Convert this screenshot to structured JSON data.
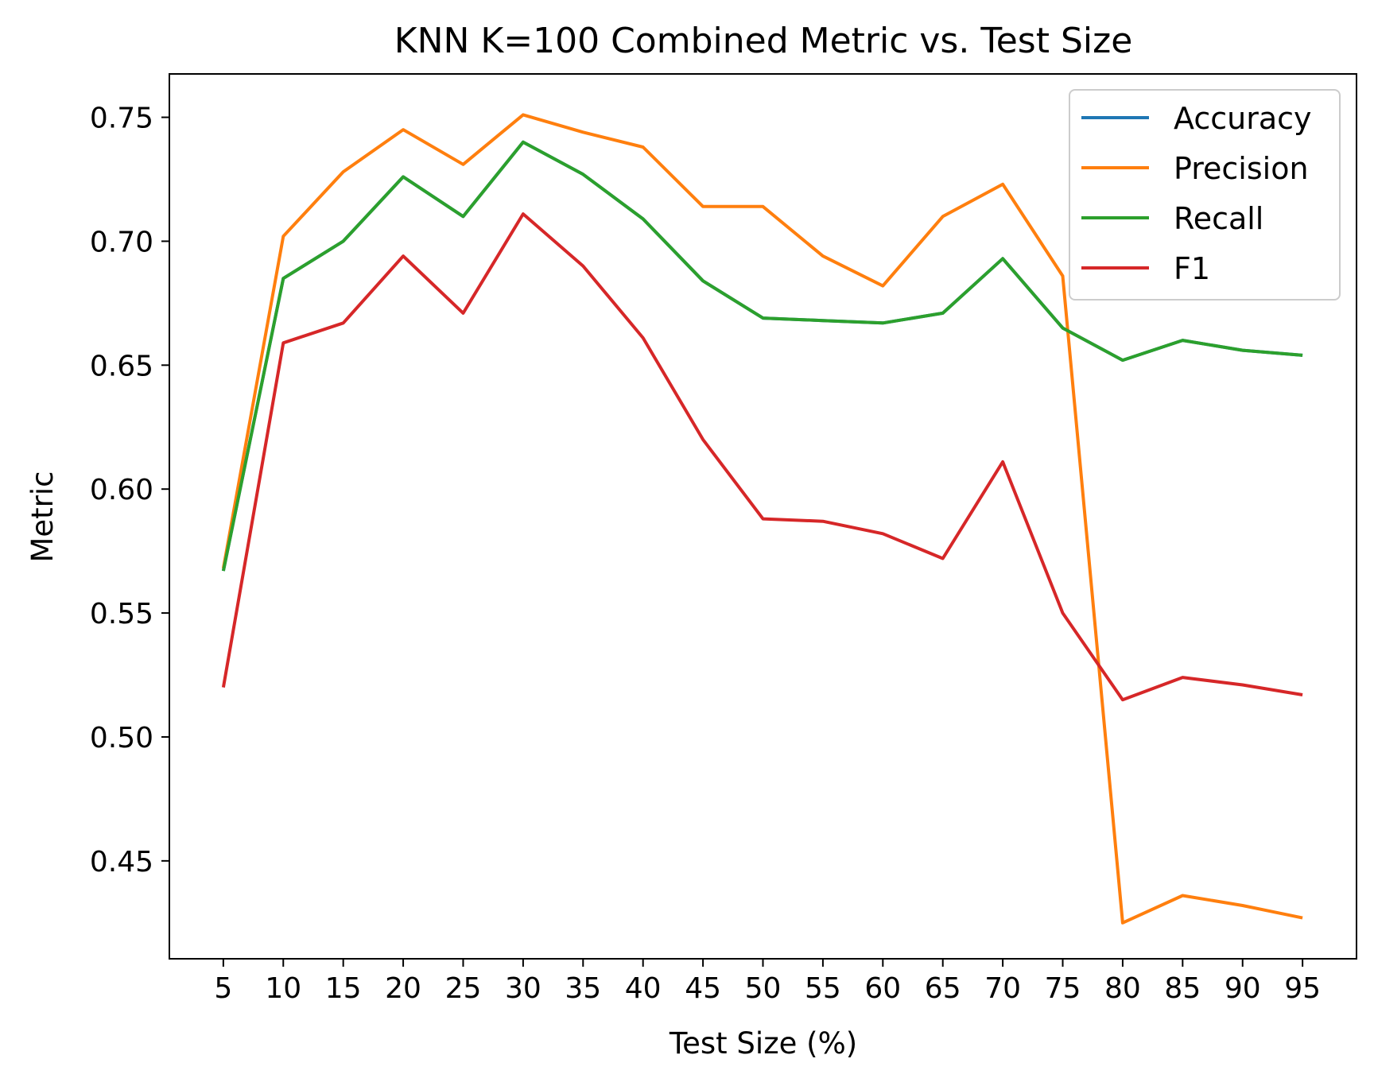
{
  "chart_data": {
    "type": "line",
    "title": "KNN K=100  Combined Metric vs. Test Size",
    "xlabel": "Test Size (%)",
    "ylabel": "Metric",
    "x": [
      5,
      10,
      15,
      20,
      25,
      30,
      35,
      40,
      45,
      50,
      55,
      60,
      65,
      70,
      75,
      80,
      85,
      90,
      95
    ],
    "xlim": [
      0.5,
      99.5
    ],
    "ylim": [
      0.4105,
      0.7675
    ],
    "yticks": [
      0.45,
      0.5,
      0.55,
      0.6,
      0.65,
      0.7,
      0.75
    ],
    "ytick_labels": [
      "0.45",
      "0.50",
      "0.55",
      "0.60",
      "0.65",
      "0.70",
      "0.75"
    ],
    "xtick_labels": [
      "5",
      "10",
      "15",
      "20",
      "25",
      "30",
      "35",
      "40",
      "45",
      "50",
      "55",
      "60",
      "65",
      "70",
      "75",
      "80",
      "85",
      "90",
      "95"
    ],
    "grid": false,
    "legend_position": "top-right",
    "series": [
      {
        "name": "Accuracy",
        "color": "#1f77b4",
        "values": [
          0.567,
          0.685,
          0.7,
          0.726,
          0.71,
          0.74,
          0.727,
          0.709,
          0.684,
          0.669,
          0.668,
          0.667,
          0.671,
          0.693,
          0.665,
          0.652,
          0.66,
          0.656,
          0.654
        ]
      },
      {
        "name": "Precision",
        "color": "#ff7f0e",
        "values": [
          0.568,
          0.702,
          0.728,
          0.745,
          0.731,
          0.751,
          0.744,
          0.738,
          0.714,
          0.714,
          0.694,
          0.682,
          0.71,
          0.723,
          0.686,
          0.425,
          0.436,
          0.432,
          0.427
        ]
      },
      {
        "name": "Recall",
        "color": "#2ca02c",
        "values": [
          0.567,
          0.685,
          0.7,
          0.726,
          0.71,
          0.74,
          0.727,
          0.709,
          0.684,
          0.669,
          0.668,
          0.667,
          0.671,
          0.693,
          0.665,
          0.652,
          0.66,
          0.656,
          0.654
        ]
      },
      {
        "name": "F1",
        "color": "#d62728",
        "values": [
          0.52,
          0.659,
          0.667,
          0.694,
          0.671,
          0.711,
          0.69,
          0.661,
          0.62,
          0.588,
          0.587,
          0.582,
          0.572,
          0.611,
          0.55,
          0.515,
          0.524,
          0.521,
          0.517
        ]
      }
    ]
  }
}
